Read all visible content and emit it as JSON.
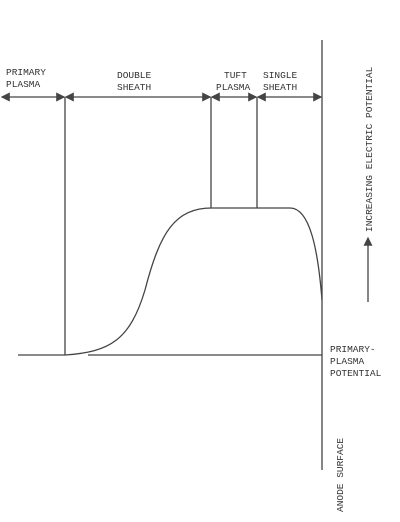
{
  "regions": [
    {
      "lines": [
        "PRIMARY",
        "PLASMA"
      ]
    },
    {
      "lines": [
        "DOUBLE",
        "SHEATH"
      ]
    },
    {
      "lines": [
        "TUFT",
        "PLASMA"
      ]
    },
    {
      "lines": [
        "SINGLE",
        "SHEATH"
      ]
    }
  ],
  "axis_label": "INCREASING ELECTRIC POTENTIAL",
  "baseline_label": [
    "PRIMARY-",
    "PLASMA",
    "POTENTIAL"
  ],
  "anode_label": "ANODE SURFACE"
}
